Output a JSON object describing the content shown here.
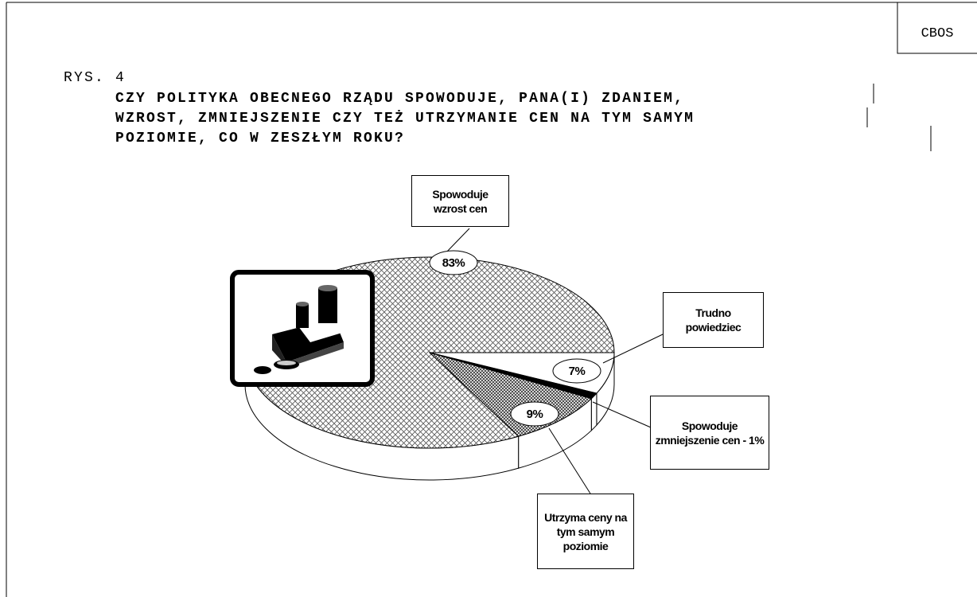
{
  "header": {
    "corner": "CBOS",
    "figure": "RYS. 4"
  },
  "chart_data": {
    "type": "pie3d",
    "title": [
      "CZY POLITYKA OBECNEGO RZĄDU SPOWODUJE, PANA(I) ZDANIEM,",
      "WZROST, ZMNIEJSZENIE CZY TEŻ UTRZYMANIE CEN NA TYM SAMYM",
      "POZIOMIE, CO W ZESZŁYM ROKU?"
    ],
    "categories": [
      "Spowoduje wzrost cen",
      "Trudno powiedziec",
      "Spowoduje zmniejszenie cen - 1%",
      "Utrzyma ceny na tym samym poziomie"
    ],
    "values": [
      83,
      7,
      1,
      9
    ],
    "value_labels": [
      "83%",
      "7%",
      null,
      "9%"
    ]
  }
}
